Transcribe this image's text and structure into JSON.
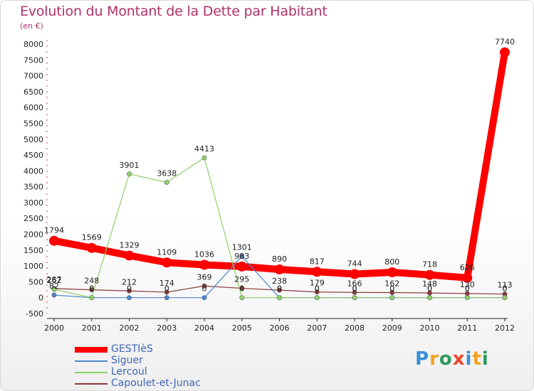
{
  "title": "Evolution du Montant de la Dette par Habitant",
  "subtitle": "(en €)",
  "logo": "Proxiti",
  "chart_data": {
    "type": "line",
    "title": "Evolution du Montant de la Dette par Habitant",
    "ylabel": "(en €)",
    "xlabel": "",
    "x": [
      "2000",
      "2001",
      "2002",
      "2003",
      "2004",
      "2005",
      "2006",
      "2007",
      "2008",
      "2009",
      "2010",
      "2011",
      "2012"
    ],
    "ylim": [
      -500,
      8000
    ],
    "yticks": [
      "-500",
      "0",
      "500",
      "1000",
      "1500",
      "2000",
      "2500",
      "3000",
      "3500",
      "4000",
      "4500",
      "5000",
      "5500",
      "6000",
      "6500",
      "7000",
      "7500",
      "8000"
    ],
    "grid": false,
    "legend": "bottom-left",
    "series": [
      {
        "name": "GESTIèS",
        "color": "#ff0000",
        "width": 10,
        "values": [
          1794,
          1569,
          1329,
          1109,
          1036,
          983,
          890,
          817,
          744,
          800,
          718,
          626,
          7740
        ],
        "labels": [
          "1794",
          "1569",
          "1329",
          "1109",
          "1036",
          "983",
          "890",
          "817",
          "744",
          "800",
          "718",
          "626",
          "7740"
        ]
      },
      {
        "name": "Siguer",
        "color": "#4a86c8",
        "width": 1.2,
        "values": [
          82,
          0,
          0,
          0,
          0,
          1301,
          0,
          0,
          0,
          0,
          0,
          0,
          0
        ],
        "labels": [
          "82",
          "0",
          "0",
          "0",
          "0",
          "1301",
          "0",
          "0",
          "0",
          "0",
          "0",
          "0",
          "0"
        ]
      },
      {
        "name": "Lercoul",
        "color": "#8ed06a",
        "width": 1.2,
        "values": [
          262,
          0,
          3901,
          3638,
          4413,
          0,
          0,
          0,
          0,
          0,
          0,
          0,
          0
        ],
        "labels": [
          "262",
          "0",
          "3901",
          "3638",
          "4413",
          "0",
          "0",
          "0",
          "0",
          "0",
          "0",
          "0",
          "0"
        ]
      },
      {
        "name": "Capoulet-et-Junac",
        "color": "#8a3a3a",
        "width": 1.2,
        "values": [
          287,
          248,
          212,
          174,
          369,
          295,
          238,
          179,
          166,
          162,
          148,
          130,
          113
        ],
        "labels": [
          "287",
          "248",
          "212",
          "174",
          "369",
          "295",
          "238",
          "179",
          "166",
          "162",
          "148",
          "130",
          "113"
        ]
      }
    ]
  }
}
